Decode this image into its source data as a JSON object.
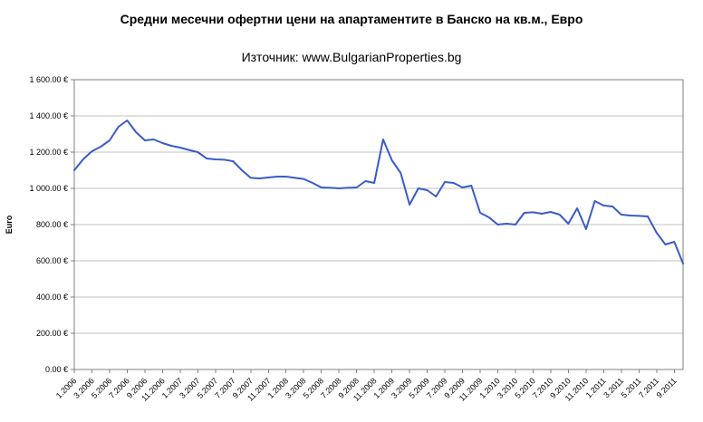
{
  "chart_data": {
    "type": "line",
    "title": "Средни месечни офертни цени на апартаментите в Банско на кв.м., Евро",
    "subtitle": "Източник: www.BulgarianProperties.bg",
    "ylabel": "Euro",
    "xlabel": "",
    "ylim": [
      0,
      1600
    ],
    "ytick_step": 200,
    "grid": true,
    "legend_position": "none",
    "line_color": "#3A5BC8",
    "gridline_color": "#C0C0C0",
    "axis_color": "#808080",
    "y_tick_labels": [
      "0.00 €",
      "200.00 €",
      "400.00 €",
      "600.00 €",
      "800.00 €",
      "1 000.00 €",
      "1 200.00 €",
      "1 400.00 €",
      "1 600.00 €"
    ],
    "x_tick_labels": [
      "1.2006",
      "3.2006",
      "5.2006",
      "7.2006",
      "9.2006",
      "11.2006",
      "1.2007",
      "3.2007",
      "5.2007",
      "7.2007",
      "9.2007",
      "11.2007",
      "1.2008",
      "3.2008",
      "5.2008",
      "7.2008",
      "9.2008",
      "11.2008",
      "1.2009",
      "3.2009",
      "5.2009",
      "7.2009",
      "9.2009",
      "11.2009",
      "1.2010",
      "3.2010",
      "5.2010",
      "7.2010",
      "9.2010",
      "11.2010",
      "1.2011",
      "3.2011",
      "5.2011",
      "7.2011",
      "9.2011"
    ],
    "x_tick_every": 2,
    "categories": [
      "1.2006",
      "2.2006",
      "3.2006",
      "4.2006",
      "5.2006",
      "6.2006",
      "7.2006",
      "8.2006",
      "9.2006",
      "10.2006",
      "11.2006",
      "12.2006",
      "1.2007",
      "2.2007",
      "3.2007",
      "4.2007",
      "5.2007",
      "6.2007",
      "7.2007",
      "8.2007",
      "9.2007",
      "10.2007",
      "11.2007",
      "12.2007",
      "1.2008",
      "2.2008",
      "3.2008",
      "4.2008",
      "5.2008",
      "6.2008",
      "7.2008",
      "8.2008",
      "9.2008",
      "10.2008",
      "11.2008",
      "12.2008",
      "1.2009",
      "2.2009",
      "3.2009",
      "4.2009",
      "5.2009",
      "6.2009",
      "7.2009",
      "8.2009",
      "9.2009",
      "10.2009",
      "11.2009",
      "12.2009",
      "1.2010",
      "2.2010",
      "3.2010",
      "4.2010",
      "5.2010",
      "6.2010",
      "7.2010",
      "8.2010",
      "9.2010",
      "10.2010",
      "11.2010",
      "12.2010",
      "1.2011",
      "2.2011",
      "3.2011",
      "4.2011",
      "5.2011",
      "6.2011",
      "7.2011",
      "8.2011",
      "9.2011",
      "10.2011"
    ],
    "values": [
      1100,
      1160,
      1205,
      1230,
      1265,
      1340,
      1375,
      1310,
      1265,
      1270,
      1250,
      1235,
      1225,
      1212,
      1200,
      1165,
      1160,
      1158,
      1150,
      1100,
      1058,
      1055,
      1060,
      1065,
      1065,
      1058,
      1052,
      1030,
      1005,
      1003,
      1000,
      1003,
      1005,
      1040,
      1030,
      1270,
      1155,
      1085,
      910,
      1000,
      990,
      955,
      1035,
      1030,
      1005,
      1015,
      865,
      840,
      800,
      805,
      800,
      865,
      868,
      860,
      870,
      855,
      805,
      890,
      775,
      930,
      905,
      900,
      855,
      850,
      848,
      845,
      755,
      690,
      705,
      585
    ]
  }
}
